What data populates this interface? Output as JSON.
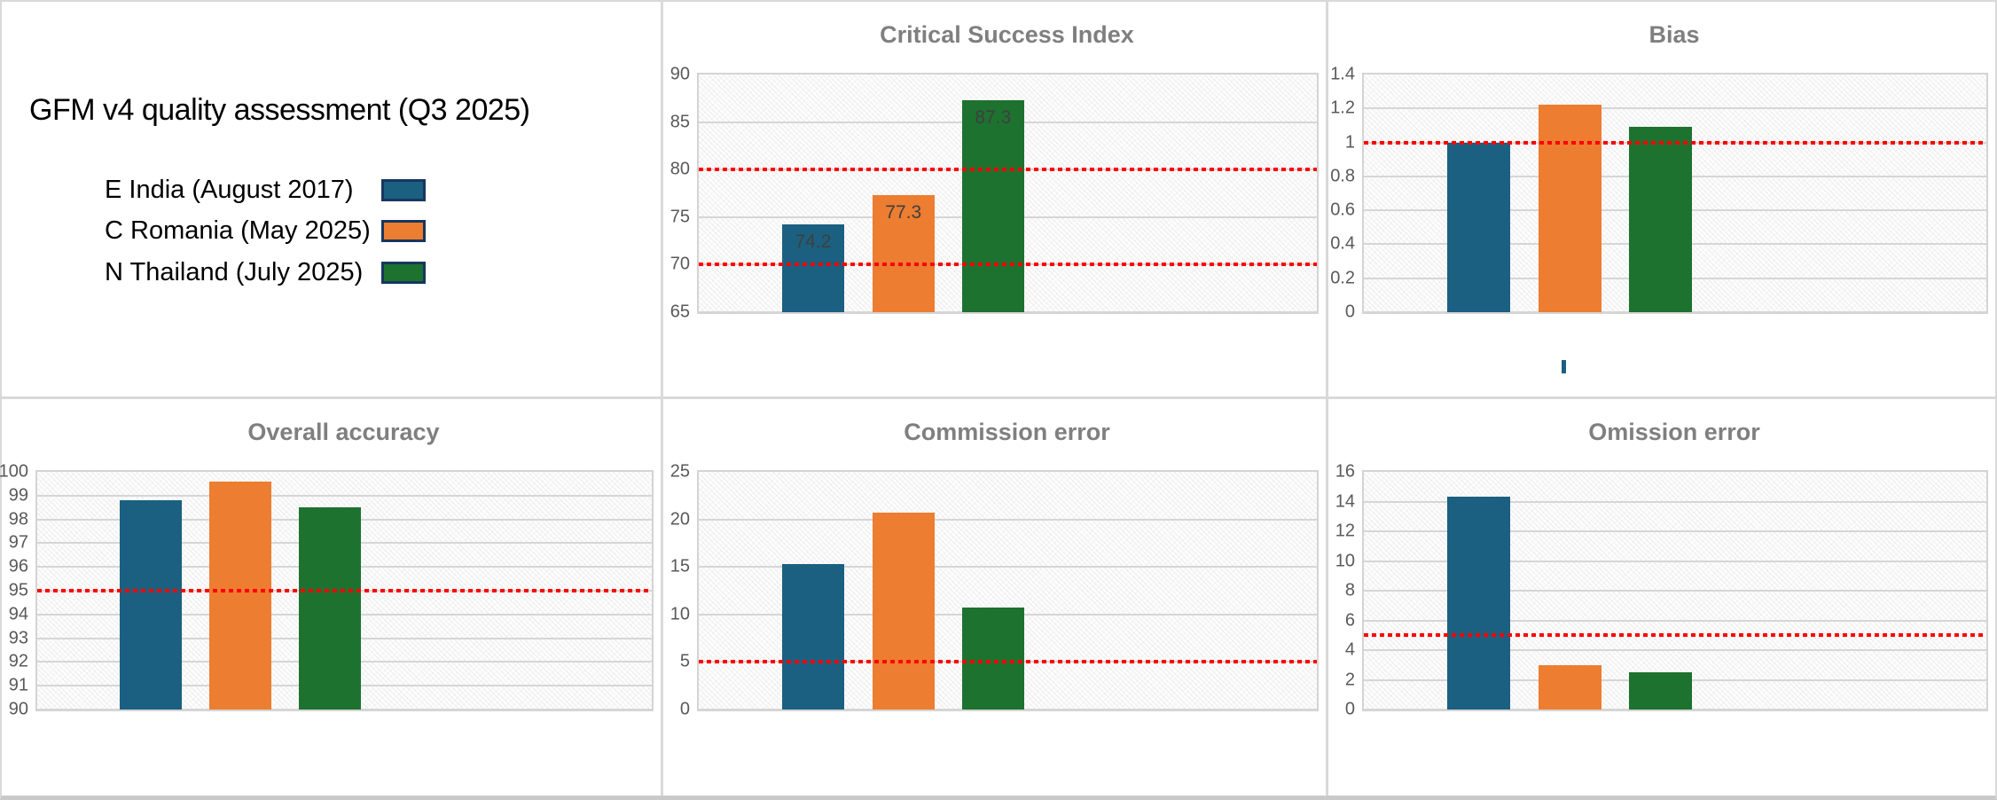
{
  "colors": {
    "series": [
      "#1B6080",
      "#ED7D31",
      "#1E7230"
    ],
    "threshold_line": "#FF0000",
    "chart_title": "#7F7F7F",
    "axis_tick": "#595959",
    "bar_data_label": "#3F3F3F",
    "legend_swatch_border": "#17375E",
    "gridline": "#D6D6D6",
    "panel_divider": "#D9D9D9"
  },
  "legend_panel": {
    "title": "GFM v4 quality assessment (Q3 2025)",
    "items": [
      {
        "label": "E India (August 2017)"
      },
      {
        "label": "C Romania (May 2025)"
      },
      {
        "label": "N Thailand (July 2025)"
      }
    ]
  },
  "chart_data": [
    {
      "type": "bar",
      "title": "Critical Success Index",
      "categories": [
        "E India (August 2017)",
        "C Romania (May 2025)",
        "N Thailand (July 2025)"
      ],
      "values": [
        74.2,
        77.3,
        87.3
      ],
      "data_labels": [
        "74.2",
        "77.3",
        "87.3"
      ],
      "ylim": [
        65,
        90
      ],
      "yticks": [
        "90",
        "85",
        "80",
        "75",
        "70",
        "65"
      ],
      "thresholds": [
        80,
        70
      ],
      "grid": true,
      "legend_position": "none"
    },
    {
      "type": "bar",
      "title": "Bias",
      "categories": [
        "E India (August 2017)",
        "C Romania (May 2025)",
        "N Thailand (July 2025)"
      ],
      "values": [
        1.0,
        1.22,
        1.09
      ],
      "ylim": [
        0,
        1.4
      ],
      "yticks": [
        "1.4",
        "1.2",
        "1",
        "0.8",
        "0.6",
        "0.4",
        "0.2",
        "0"
      ],
      "thresholds": [
        1.0
      ],
      "grid": true,
      "legend_position": "none"
    },
    {
      "type": "bar",
      "title": "Overall accuracy",
      "categories": [
        "E India (August 2017)",
        "C Romania (May 2025)",
        "N Thailand (July 2025)"
      ],
      "values": [
        98.8,
        99.6,
        98.5
      ],
      "ylim": [
        90,
        100
      ],
      "yticks": [
        "100",
        "99",
        "98",
        "97",
        "96",
        "95",
        "94",
        "93",
        "92",
        "91",
        "90"
      ],
      "thresholds": [
        95
      ],
      "grid": true,
      "legend_position": "none"
    },
    {
      "type": "bar",
      "title": "Commission error",
      "categories": [
        "E India (August 2017)",
        "C Romania (May 2025)",
        "N Thailand (July 2025)"
      ],
      "values": [
        15.3,
        20.7,
        10.7
      ],
      "ylim": [
        0,
        25
      ],
      "yticks": [
        "25",
        "20",
        "15",
        "10",
        "5",
        "0"
      ],
      "thresholds": [
        5
      ],
      "grid": true,
      "legend_position": "none"
    },
    {
      "type": "bar",
      "title": "Omission error",
      "categories": [
        "E India (August 2017)",
        "C Romania (May 2025)",
        "N Thailand (July 2025)"
      ],
      "values": [
        14.3,
        3.0,
        2.5
      ],
      "ylim": [
        0,
        16
      ],
      "yticks": [
        "16",
        "14",
        "12",
        "10",
        "8",
        "6",
        "4",
        "2",
        "0"
      ],
      "thresholds": [
        5
      ],
      "grid": true,
      "legend_position": "none"
    }
  ]
}
